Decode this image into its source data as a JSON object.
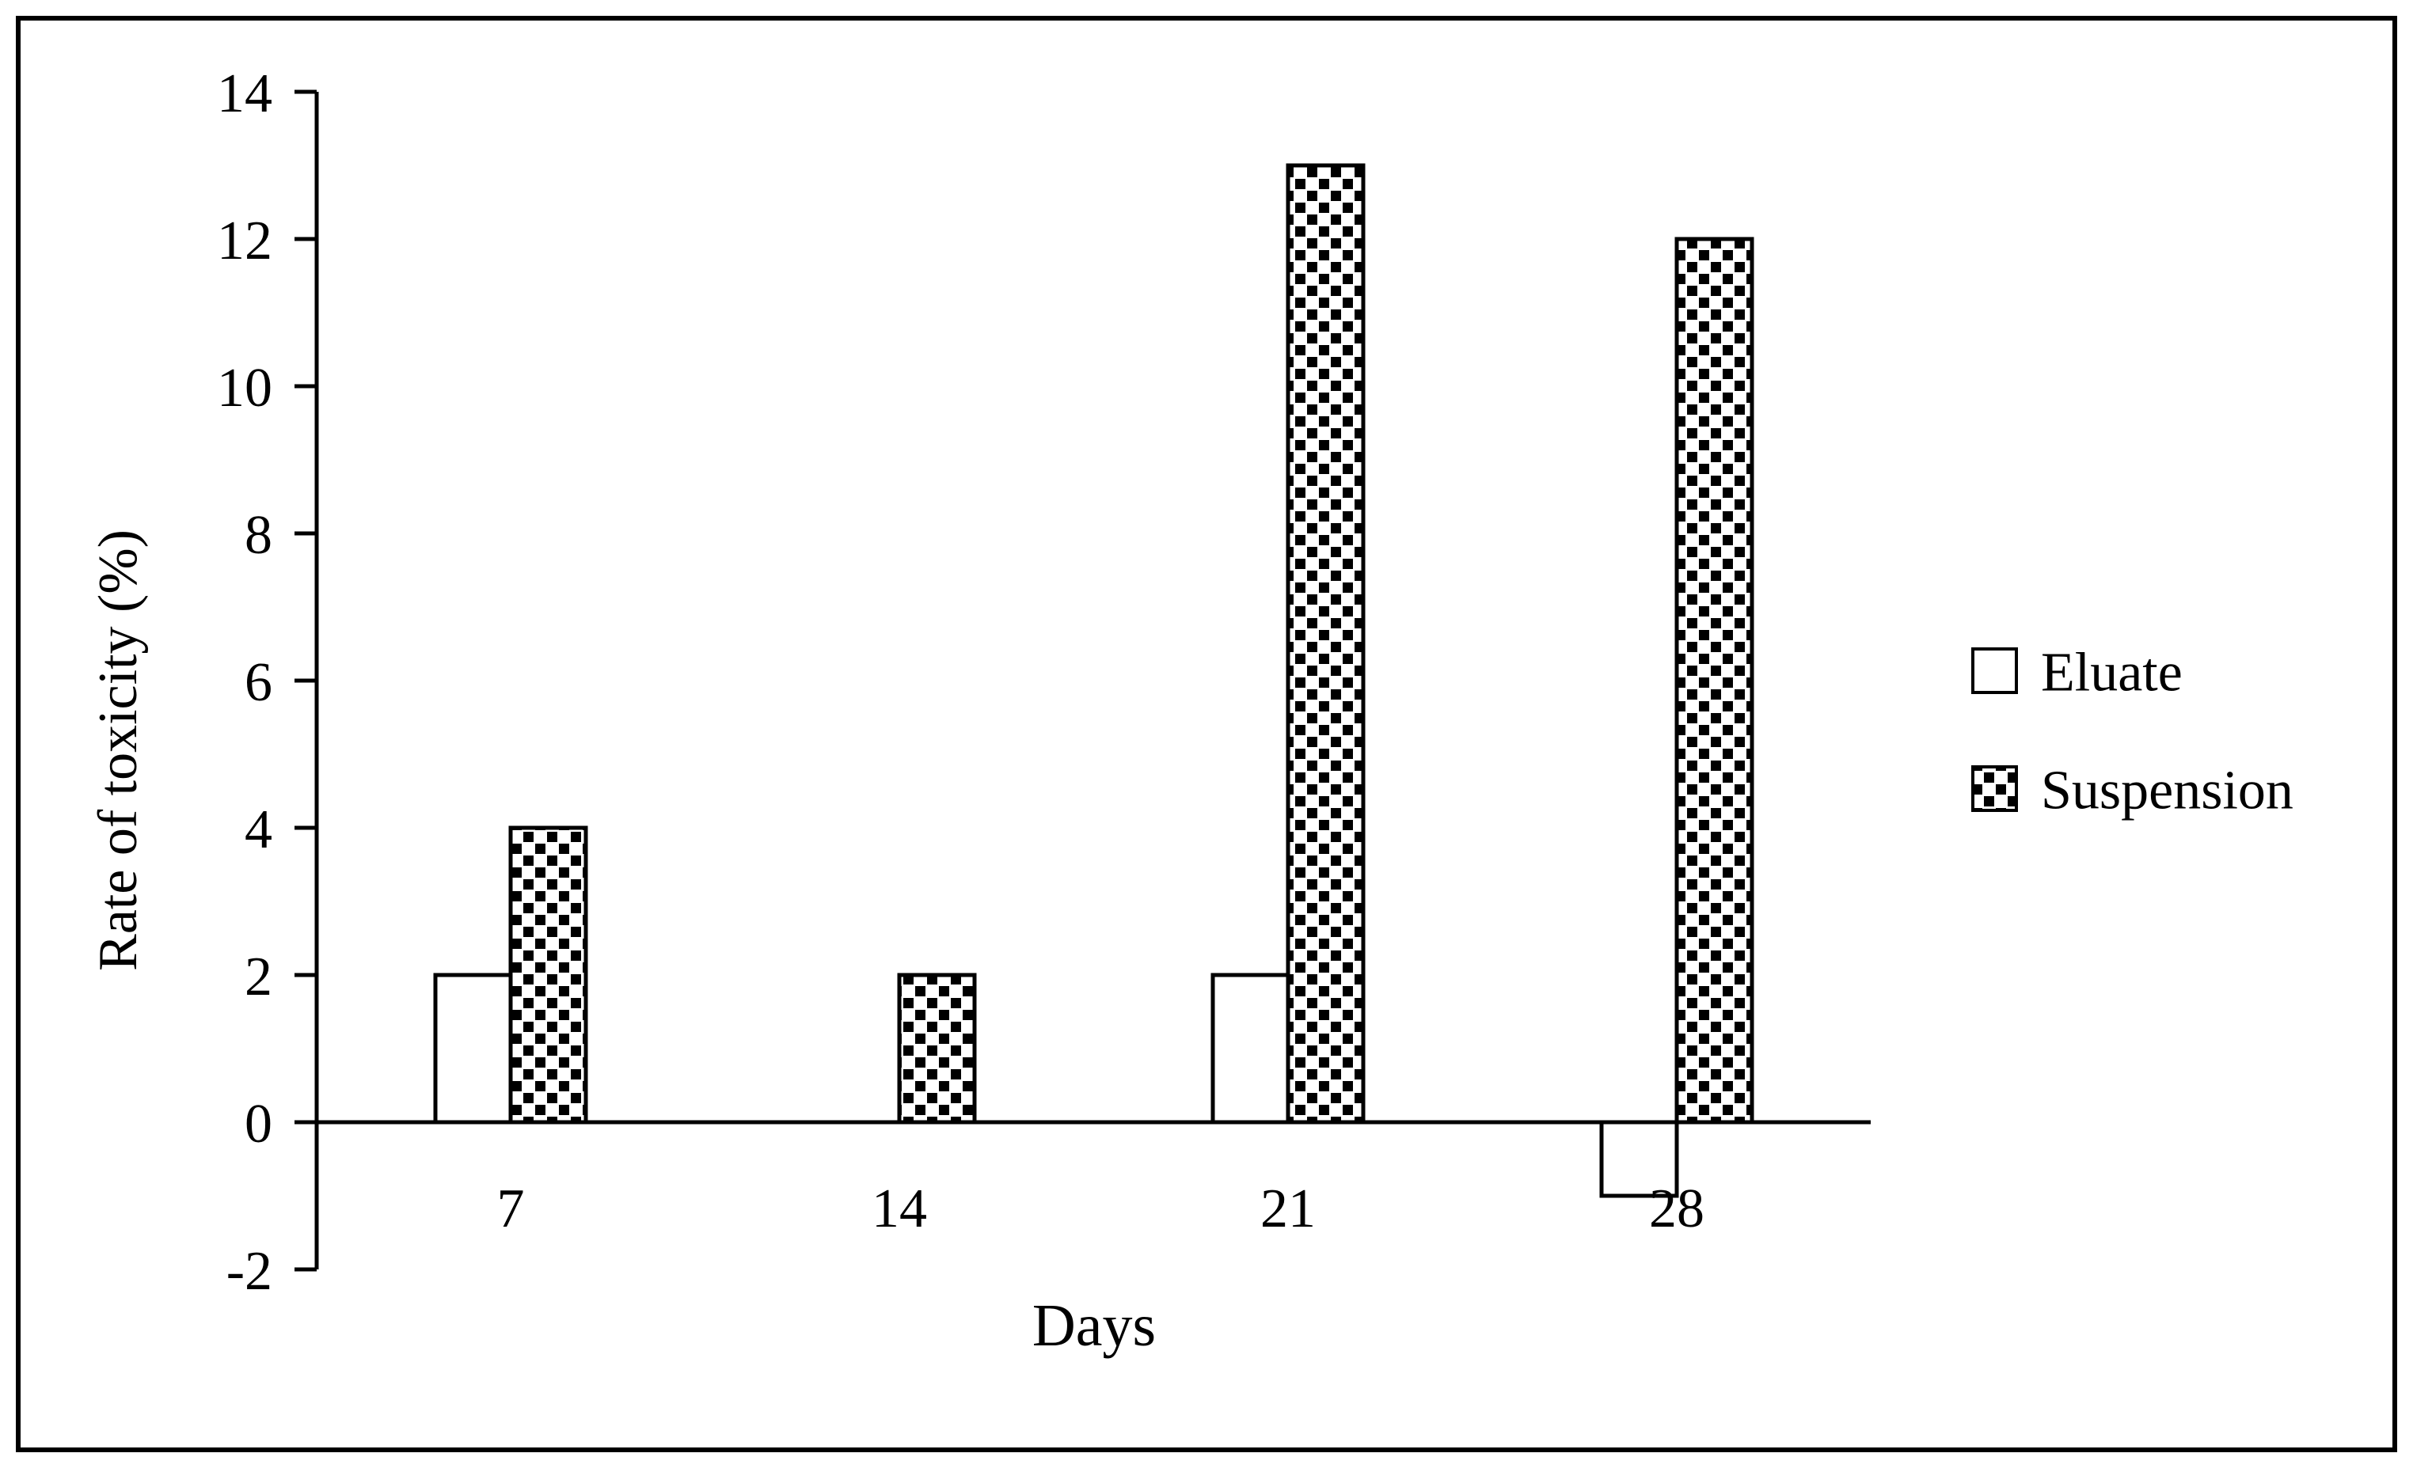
{
  "figure": {
    "background": "#ffffff",
    "border_color": "#000000",
    "ink_color": "#000000"
  },
  "chart_data": {
    "type": "bar",
    "title": "",
    "categories": [
      "7",
      "14",
      "21",
      "28"
    ],
    "series": [
      {
        "name": "Eluate",
        "values": [
          2,
          0,
          2,
          -1
        ],
        "fill": "white",
        "pattern": "none"
      },
      {
        "name": "Suspension",
        "values": [
          4,
          2,
          13,
          12
        ],
        "fill": "checkered-dots",
        "pattern": "black-square-checker"
      }
    ],
    "xlabel": "Days",
    "ylabel": "Rate of toxicity (%)",
    "ylim": [
      -2,
      14
    ],
    "yticks": [
      14,
      12,
      10,
      8,
      6,
      4,
      2,
      0,
      -2
    ],
    "grid": false,
    "legend_position": "right",
    "legend_items": [
      "Eluate",
      "Suspension"
    ]
  }
}
